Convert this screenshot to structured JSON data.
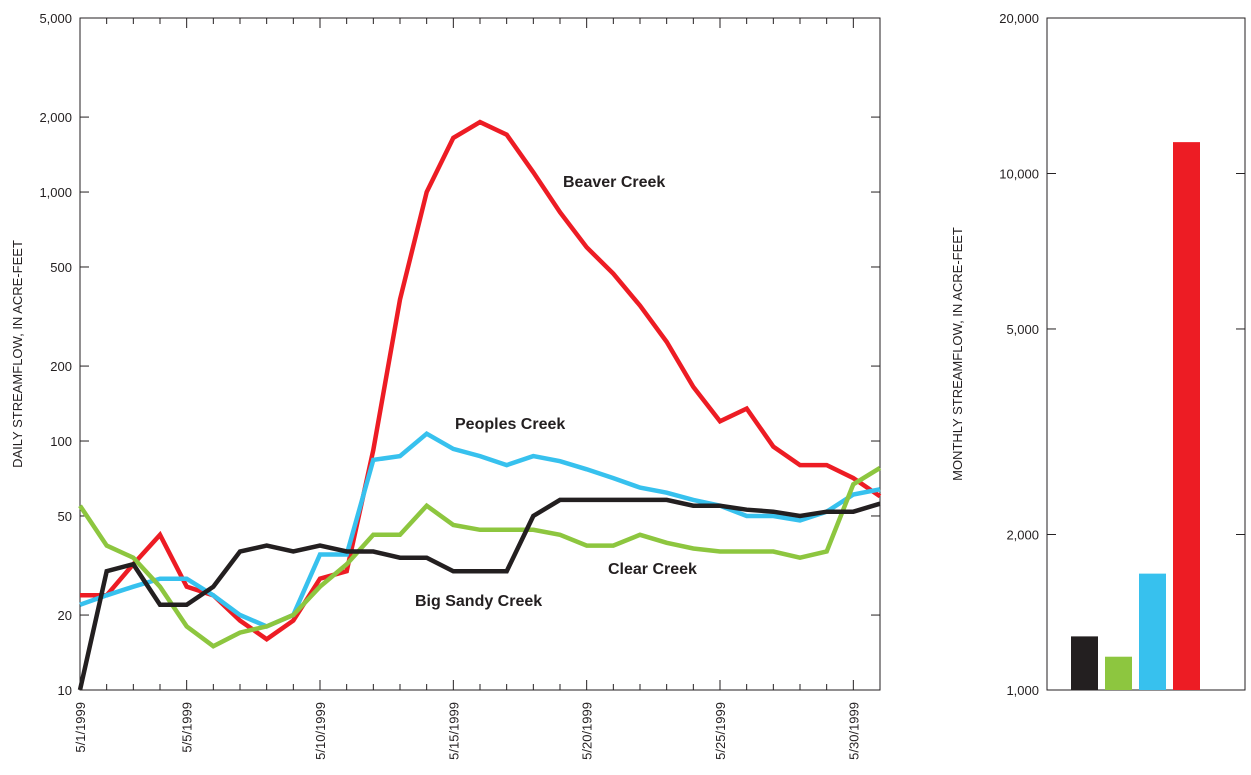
{
  "chart_data": [
    {
      "type": "line",
      "y_label": "DAILY STREAMFLOW, IN ACRE-FEET",
      "yscale": "log",
      "grid": false,
      "categories": [
        "5/1/1999",
        null,
        null,
        null,
        "5/5/1999",
        null,
        null,
        null,
        null,
        "5/10/1999",
        null,
        null,
        null,
        null,
        "5/15/1999",
        null,
        null,
        null,
        null,
        "5/20/1999",
        null,
        null,
        null,
        null,
        "5/25/1999",
        null,
        null,
        null,
        null,
        "5/30/1999",
        null
      ],
      "ylim": [
        10,
        5000
      ],
      "yticks": [
        10,
        20,
        50,
        100,
        200,
        500,
        {
          "value": 1000,
          "label": "1,000"
        },
        {
          "value": 2000,
          "label": "2,000"
        },
        {
          "value": 5000,
          "label": "5,000"
        }
      ],
      "series": [
        {
          "name": "Beaver Creek",
          "color": "#ed1c24",
          "values": [
            24,
            24,
            32,
            42,
            26,
            24,
            19,
            16,
            19,
            28,
            30,
            92,
            370,
            1000,
            1650,
            1910,
            1700,
            1200,
            830,
            600,
            470,
            350,
            250,
            165,
            120,
            135,
            95,
            80,
            80,
            71,
            60
          ]
        },
        {
          "name": "Peoples Creek",
          "color": "#37c1ee",
          "values": [
            22,
            24,
            26,
            28,
            28,
            24,
            20,
            18,
            20,
            35,
            35,
            84,
            87,
            107,
            93,
            87,
            80,
            87,
            83,
            77,
            71,
            65,
            62,
            58,
            55,
            50,
            50,
            48,
            52,
            61,
            64
          ]
        },
        {
          "name": "Clear Creek",
          "color": "#8dc63f",
          "values": [
            55,
            38,
            34,
            26,
            18,
            15,
            17,
            18,
            20,
            26,
            32,
            42,
            42,
            55,
            46,
            44,
            44,
            44,
            42,
            38,
            38,
            42,
            39,
            37,
            36,
            36,
            36,
            34,
            36,
            67,
            78
          ]
        },
        {
          "name": "Big Sandy Creek",
          "color": "#231f20",
          "values": [
            10,
            30,
            32,
            22,
            22,
            26,
            36,
            38,
            36,
            38,
            36,
            36,
            34,
            34,
            30,
            30,
            30,
            50,
            58,
            58,
            58,
            58,
            58,
            55,
            55,
            53,
            52,
            50,
            52,
            52,
            56
          ]
        }
      ]
    },
    {
      "type": "bar",
      "y_label": "MONTHLY STREAMFLOW, IN ACRE-FEET",
      "yscale": "log",
      "grid": false,
      "categories": [
        null,
        null,
        null,
        null
      ],
      "values": [
        1270,
        1160,
        1680,
        11500
      ],
      "colors": [
        "#231f20",
        "#8dc63f",
        "#37c1ee",
        "#ed1c24"
      ],
      "ylim": [
        1000,
        20000
      ],
      "yticks": [
        {
          "value": 1000,
          "label": "1,000"
        },
        {
          "value": 2000,
          "label": "2,000"
        },
        {
          "value": 5000,
          "label": "5,000"
        },
        {
          "value": 10000,
          "label": "10,000"
        },
        {
          "value": 20000,
          "label": "20,000"
        }
      ]
    }
  ]
}
